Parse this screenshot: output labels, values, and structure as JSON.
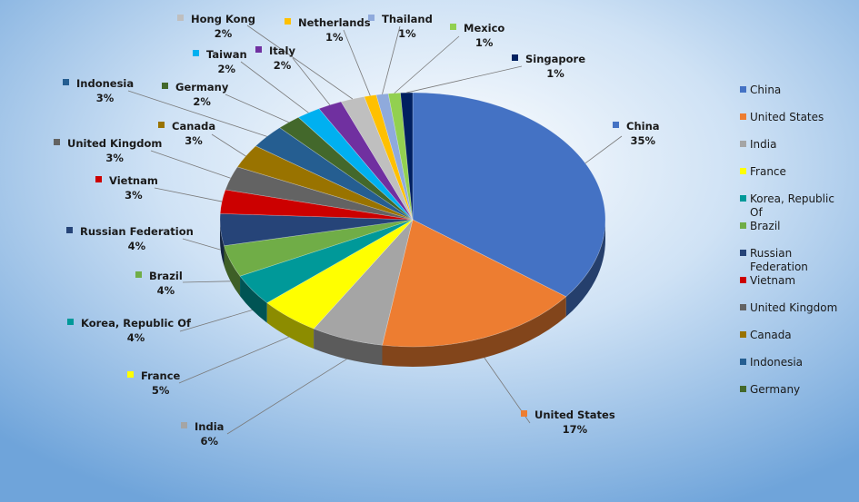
{
  "chart_data": {
    "type": "pie",
    "title": "",
    "legend_position": "right",
    "slices": [
      {
        "name": "China",
        "label_name": "China",
        "value": 35,
        "label": "35%",
        "color": "#4472C4"
      },
      {
        "name": "United States",
        "label_name": "United States",
        "value": 17,
        "label": "17%",
        "color": "#ED7D31"
      },
      {
        "name": "India",
        "label_name": "India",
        "value": 6,
        "label": "6%",
        "color": "#A5A5A5"
      },
      {
        "name": "France",
        "label_name": "France",
        "value": 5,
        "label": "5%",
        "color": "#FFFF00"
      },
      {
        "name": "Korea, Republic Of",
        "label_name": "Korea, Republic Of",
        "value": 4,
        "label": "4%",
        "color": "#009999"
      },
      {
        "name": "Brazil",
        "label_name": "Brazil",
        "value": 4,
        "label": "4%",
        "color": "#70AD47"
      },
      {
        "name": "Russian Federation",
        "label_name": "Russian Federation",
        "value": 4,
        "label": "4%",
        "color": "#264478"
      },
      {
        "name": "Vietnam",
        "label_name": "Vietnam",
        "value": 3,
        "label": "3%",
        "color": "#CC0000"
      },
      {
        "name": "United Kingdom",
        "label_name": "United Kingdom",
        "value": 3,
        "label": "3%",
        "color": "#636363"
      },
      {
        "name": "Canada",
        "label_name": "Canada",
        "value": 3,
        "label": "3%",
        "color": "#997300"
      },
      {
        "name": "Indonesia",
        "label_name": "Indonesia",
        "value": 3,
        "label": "3%",
        "color": "#255E91"
      },
      {
        "name": "Germany",
        "label_name": "Germany",
        "value": 2,
        "label": "2%",
        "color": "#43682B"
      },
      {
        "name": "Taiwan",
        "label_name": "Taiwan",
        "value": 2,
        "label": "2%",
        "color": "#00B0F0"
      },
      {
        "name": "Italy",
        "label_name": "Italy",
        "value": 2,
        "label": "2%",
        "color": "#7030A0"
      },
      {
        "name": "Hong Kong",
        "label_name": "Hong Kong",
        "value": 2,
        "label": "2%",
        "color": "#BFBFBF"
      },
      {
        "name": "Netherlands",
        "label_name": "Netherlands",
        "value": 1,
        "label": "1%",
        "color": "#FFC000"
      },
      {
        "name": "Thailand",
        "label_name": "Thailand",
        "value": 1,
        "label": "1%",
        "color": "#8FAADC"
      },
      {
        "name": "Mexico",
        "label_name": "Mexico",
        "value": 1,
        "label": "1%",
        "color": "#92D050"
      },
      {
        "name": "Singapore",
        "label_name": "Singapore",
        "value": 1,
        "label": "1%",
        "color": "#002060"
      }
    ],
    "legend": [
      {
        "lines": [
          "China"
        ],
        "color": "#4472C4"
      },
      {
        "lines": [
          "United States"
        ],
        "color": "#ED7D31"
      },
      {
        "lines": [
          "India"
        ],
        "color": "#A5A5A5"
      },
      {
        "lines": [
          "France"
        ],
        "color": "#FFFF00"
      },
      {
        "lines": [
          "Korea, Republic",
          "Of"
        ],
        "color": "#009999"
      },
      {
        "lines": [
          "Brazil"
        ],
        "color": "#70AD47"
      },
      {
        "lines": [
          "Russian",
          "Federation"
        ],
        "color": "#264478"
      },
      {
        "lines": [
          "Vietnam"
        ],
        "color": "#CC0000"
      },
      {
        "lines": [
          "United Kingdom"
        ],
        "color": "#636363"
      },
      {
        "lines": [
          "Canada"
        ],
        "color": "#997300"
      },
      {
        "lines": [
          "Indonesia"
        ],
        "color": "#255E91"
      },
      {
        "lines": [
          "Germany"
        ],
        "color": "#43682B"
      }
    ]
  }
}
